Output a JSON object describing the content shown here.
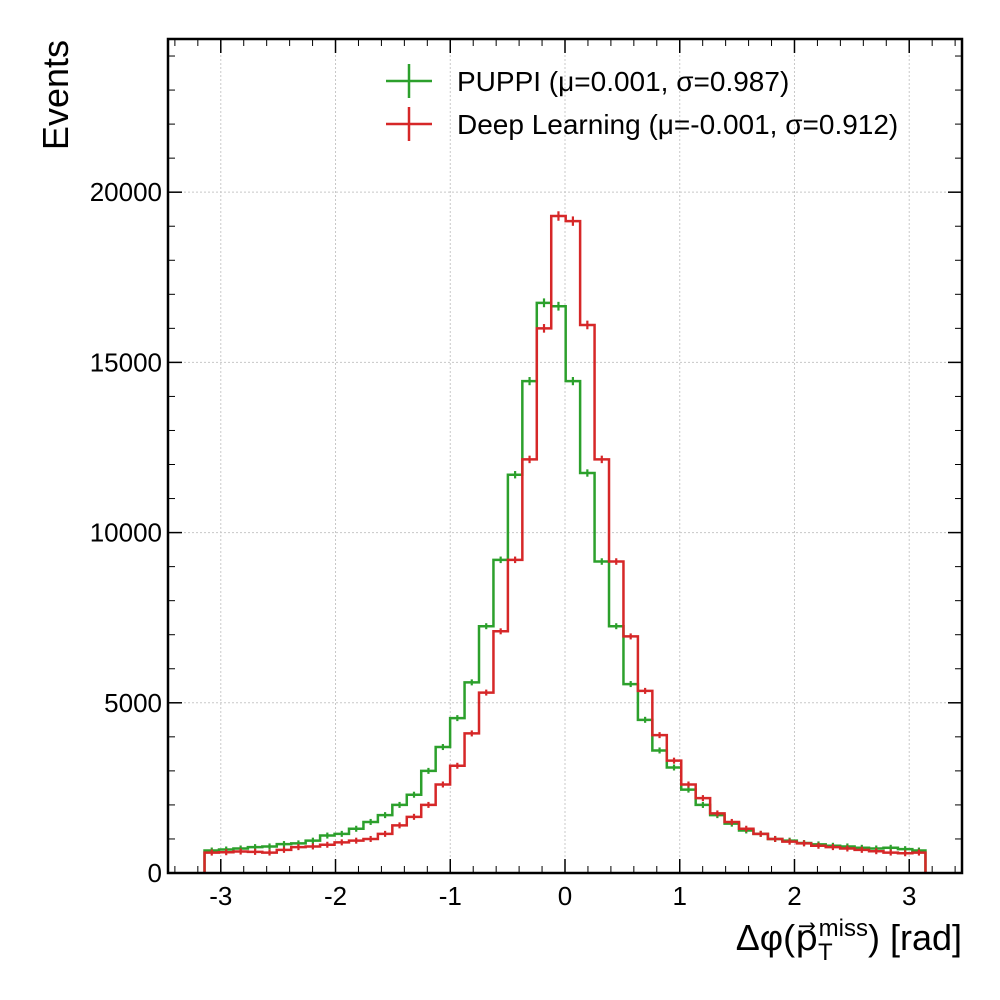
{
  "chart_data": {
    "type": "line",
    "drawstyle": "steps",
    "title": "",
    "xlabel": "Δφ(p⃗",
    "xlabel_sub": "T",
    "xlabel_sup": "miss",
    "xlabel_suffix": ") [rad]",
    "ylabel": "Events",
    "xlim": [
      -3.46,
      3.46
    ],
    "ylim": [
      0,
      24500
    ],
    "grid": true,
    "legend_position": "top-right",
    "x_ticks": [
      -3,
      -2,
      -1,
      0,
      1,
      2,
      3
    ],
    "x_tick_labels": [
      "-3",
      "-2",
      "-1",
      "0",
      "1",
      "2",
      "3"
    ],
    "y_ticks": [
      0,
      5000,
      10000,
      15000,
      20000
    ],
    "y_tick_labels": [
      "0",
      "5000",
      "10000",
      "15000",
      "20000"
    ],
    "bin_edges": [
      -3.1416,
      -3.0157,
      -2.8898,
      -2.7639,
      -2.638,
      -2.5121,
      -2.3862,
      -2.2603,
      -2.1344,
      -2.0085,
      -1.8826,
      -1.7567,
      -1.6308,
      -1.5049,
      -1.379,
      -1.2531,
      -1.1272,
      -1.0013,
      -0.8754,
      -0.7495,
      -0.6236,
      -0.4977,
      -0.3718,
      -0.2459,
      -0.12,
      0.0059,
      0.1318,
      0.2577,
      0.3836,
      0.5095,
      0.6354,
      0.7613,
      0.8872,
      1.0131,
      1.139,
      1.2649,
      1.3908,
      1.5167,
      1.6426,
      1.7685,
      1.8944,
      2.0203,
      2.1462,
      2.2721,
      2.398,
      2.5239,
      2.6498,
      2.7757,
      2.9016,
      3.0275,
      3.1416
    ],
    "series": [
      {
        "name": "PUPPI (μ=0.001, σ=0.987)",
        "color": "#2ca02c",
        "values": [
          660,
          690,
          720,
          760,
          780,
          850,
          870,
          950,
          1100,
          1150,
          1300,
          1500,
          1700,
          2000,
          2300,
          3000,
          3700,
          4550,
          5600,
          7250,
          9200,
          11700,
          14450,
          16750,
          16650,
          14450,
          11750,
          9150,
          7250,
          5550,
          4500,
          3600,
          3100,
          2450,
          2000,
          1700,
          1450,
          1250,
          1150,
          1000,
          950,
          880,
          840,
          800,
          780,
          740,
          720,
          740,
          700,
          660
        ]
      },
      {
        "name": "Deep Learning (μ=-0.001, σ=0.912)",
        "color": "#d62728",
        "values": [
          600,
          610,
          630,
          620,
          600,
          680,
          760,
          780,
          830,
          900,
          950,
          1000,
          1150,
          1400,
          1650,
          2000,
          2600,
          3150,
          4100,
          5300,
          7100,
          9200,
          12150,
          16000,
          19300,
          19150,
          16100,
          12150,
          9150,
          6950,
          5350,
          4050,
          3300,
          2600,
          2200,
          1750,
          1500,
          1300,
          1150,
          1000,
          920,
          870,
          800,
          760,
          720,
          680,
          640,
          600,
          580,
          600
        ]
      }
    ]
  }
}
